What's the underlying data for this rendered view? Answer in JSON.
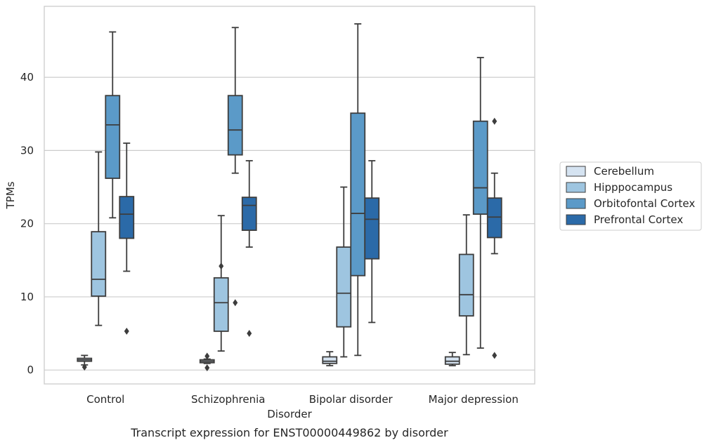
{
  "caption": "Transcript expression for ENST00000449862 by disorder",
  "chart_data": {
    "type": "boxplot",
    "title": "",
    "xlabel": "Disorder",
    "ylabel": "TPMs",
    "ylim": [
      -1.9,
      49.7
    ],
    "yticks": [
      0,
      10,
      20,
      30,
      40
    ],
    "grid": "horizontal",
    "legend_position": "right",
    "categories": [
      "Control",
      "Schizophrenia",
      "Bipolar disorder",
      "Major depression"
    ],
    "series": [
      {
        "name": "Cerebellum",
        "color": "#d5e3f1",
        "boxes": [
          {
            "whislo": 0.7,
            "q1": 1.2,
            "med": 1.4,
            "q3": 1.6,
            "whishi": 2.0,
            "fliers": [
              0.4
            ]
          },
          {
            "whislo": 0.9,
            "q1": 1.0,
            "med": 1.2,
            "q3": 1.4,
            "whishi": 1.5,
            "fliers": [
              0.3,
              1.9
            ]
          },
          {
            "whislo": 0.6,
            "q1": 0.9,
            "med": 1.2,
            "q3": 1.8,
            "whishi": 2.5,
            "fliers": []
          },
          {
            "whislo": 0.6,
            "q1": 0.8,
            "med": 1.2,
            "q3": 1.8,
            "whishi": 2.4,
            "fliers": []
          }
        ]
      },
      {
        "name": "Hipppocampus",
        "color": "#9ec5e0",
        "boxes": [
          {
            "whislo": 6.1,
            "q1": 10.1,
            "med": 12.4,
            "q3": 18.9,
            "whishi": 29.8,
            "fliers": []
          },
          {
            "whislo": 2.6,
            "q1": 5.3,
            "med": 9.2,
            "q3": 12.6,
            "whishi": 21.1,
            "fliers": [
              14.2
            ]
          },
          {
            "whislo": 1.8,
            "q1": 5.9,
            "med": 10.5,
            "q3": 16.8,
            "whishi": 25.0,
            "fliers": []
          },
          {
            "whislo": 2.1,
            "q1": 7.4,
            "med": 10.3,
            "q3": 15.8,
            "whishi": 21.2,
            "fliers": []
          }
        ]
      },
      {
        "name": "Orbitofontal Cortex",
        "color": "#5b9ac8",
        "boxes": [
          {
            "whislo": 20.8,
            "q1": 26.2,
            "med": 33.5,
            "q3": 37.5,
            "whishi": 46.2,
            "fliers": []
          },
          {
            "whislo": 26.9,
            "q1": 29.4,
            "med": 32.8,
            "q3": 37.5,
            "whishi": 46.8,
            "fliers": [
              9.2
            ]
          },
          {
            "whislo": 2.0,
            "q1": 12.9,
            "med": 21.4,
            "q3": 35.1,
            "whishi": 47.3,
            "fliers": []
          },
          {
            "whislo": 3.0,
            "q1": 21.3,
            "med": 24.9,
            "q3": 34.0,
            "whishi": 42.7,
            "fliers": []
          }
        ]
      },
      {
        "name": "Prefrontal Cortex",
        "color": "#2b6aa8",
        "boxes": [
          {
            "whislo": 13.5,
            "q1": 18.0,
            "med": 21.3,
            "q3": 23.7,
            "whishi": 31.0,
            "fliers": [
              5.3
            ]
          },
          {
            "whislo": 16.8,
            "q1": 19.1,
            "med": 22.5,
            "q3": 23.6,
            "whishi": 28.6,
            "fliers": [
              5.0
            ]
          },
          {
            "whislo": 6.5,
            "q1": 15.2,
            "med": 20.6,
            "q3": 23.5,
            "whishi": 28.6,
            "fliers": []
          },
          {
            "whislo": 15.9,
            "q1": 18.1,
            "med": 20.9,
            "q3": 23.5,
            "whishi": 26.9,
            "fliers": [
              2.0,
              34.0
            ]
          }
        ]
      }
    ]
  }
}
